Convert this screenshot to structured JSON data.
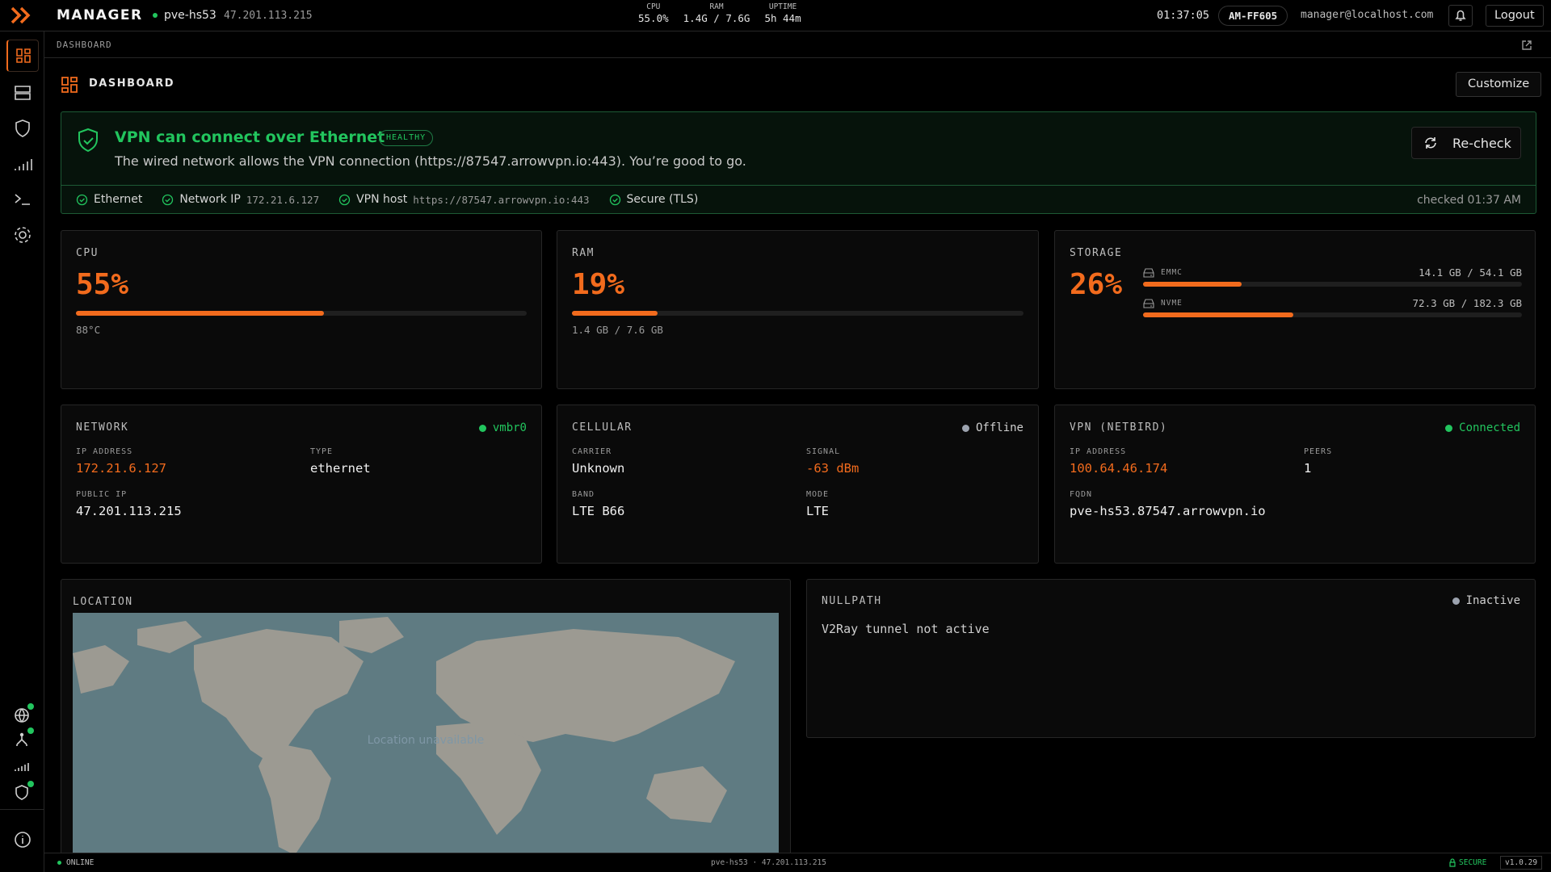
{
  "topbar": {
    "brand": "MANAGER",
    "host": "pve-hs53",
    "ip": "47.201.113.215",
    "stats": [
      {
        "label": "CPU",
        "value": "55.0%"
      },
      {
        "label": "RAM",
        "value": "1.4G / 7.6G"
      },
      {
        "label": "UPTIME",
        "value": "5h 44m"
      }
    ],
    "time": "01:37:05",
    "device": "AM-FF605",
    "user": "manager@localhost.com",
    "logout": "Logout"
  },
  "breadcrumb": "DASHBOARD",
  "header": {
    "title": "DASHBOARD",
    "customize": "Customize"
  },
  "banner": {
    "title": "VPN can connect over Ethernet",
    "badge": "HEALTHY",
    "message": "The wired network allows the VPN connection (https://87547.arrowvpn.io:443). You’re good to go.",
    "button": "Re-check",
    "checks": [
      {
        "label": "Ethernet"
      },
      {
        "label": "Network IP",
        "value": "172.21.6.127"
      },
      {
        "label": "VPN host",
        "value": "https://87547.arrowvpn.io:443"
      },
      {
        "label": "Secure (TLS)"
      }
    ],
    "checked": "checked 01:37 AM"
  },
  "cpu": {
    "title": "CPU",
    "percent": {
      "value": 55,
      "label": "55%"
    },
    "detail": "88°C"
  },
  "ram": {
    "title": "RAM",
    "percent": {
      "value": 19,
      "label": "19%"
    },
    "detail": "1.4 GB / 7.6 GB"
  },
  "storage": {
    "title": "STORAGE",
    "percent": {
      "value": 26,
      "label": "26%"
    },
    "drives": [
      {
        "name": "EMMC",
        "text": "14.1 GB / 54.1 GB",
        "used": 14.1,
        "total": 54.1
      },
      {
        "name": "NVME",
        "text": "72.3 GB / 182.3 GB",
        "used": 72.3,
        "total": 182.3
      }
    ]
  },
  "network": {
    "title": "NETWORK",
    "status": "vmbr0",
    "status_color": "#22c55e",
    "fields": [
      {
        "label": "IP ADDRESS",
        "value": "172.21.6.127",
        "color": "#f26b1d"
      },
      {
        "label": "TYPE",
        "value": "ethernet"
      },
      {
        "label": "PUBLIC IP",
        "value": "47.201.113.215"
      }
    ]
  },
  "cellular": {
    "title": "CELLULAR",
    "status": "Offline",
    "status_color": "#9ca3af",
    "fields": [
      {
        "label": "CARRIER",
        "value": "Unknown"
      },
      {
        "label": "SIGNAL",
        "value": "-63 dBm",
        "color": "#f26b1d"
      },
      {
        "label": "BAND",
        "value": "LTE B66"
      },
      {
        "label": "MODE",
        "value": "LTE"
      }
    ]
  },
  "vpn": {
    "title": "VPN (NETBIRD)",
    "status": "Connected",
    "status_color": "#22c55e",
    "fields": [
      {
        "label": "IP ADDRESS",
        "value": "100.64.46.174",
        "color": "#f26b1d"
      },
      {
        "label": "PEERS",
        "value": "1"
      },
      {
        "label": "FQDN",
        "value": "pve-hs53.87547.arrowvpn.io"
      }
    ]
  },
  "location": {
    "title": "LOCATION",
    "message": "Location unavailable"
  },
  "nullpath": {
    "title": "NULLPATH",
    "status": "Inactive",
    "status_color": "#9ca3af",
    "message": "V2Ray tunnel not active"
  },
  "footer": {
    "status": "ONLINE",
    "host": "pve-hs53 · 47.201.113.215",
    "secure": "SECURE",
    "version": "v1.0.29"
  }
}
